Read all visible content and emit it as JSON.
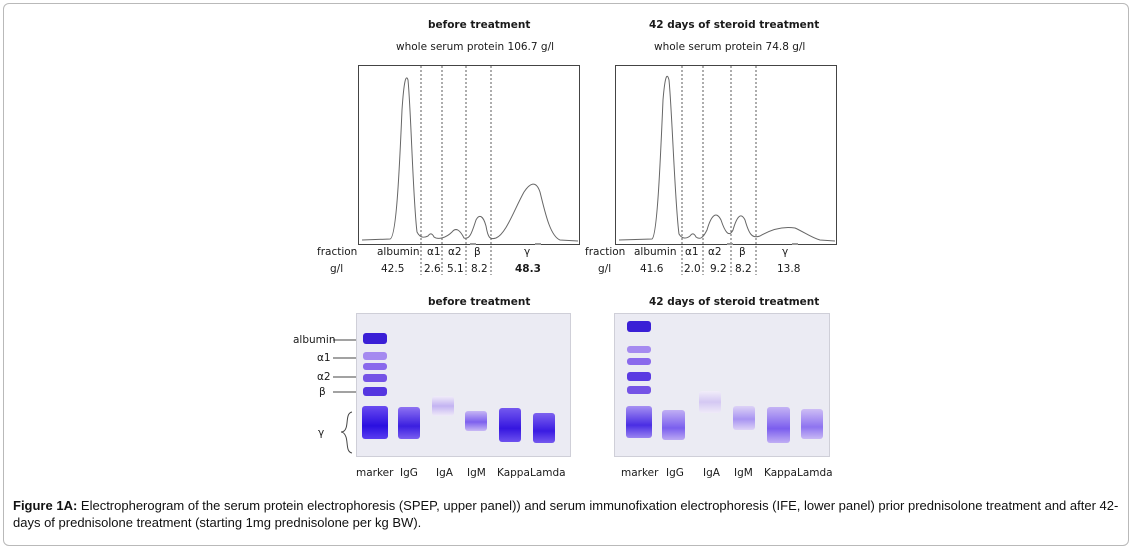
{
  "panels": [
    {
      "title": "before treatment",
      "subtitle": "whole serum protein 106.7 g/l",
      "row_labels": [
        "fraction",
        "g/l"
      ],
      "fractions": [
        "albumin",
        "α1",
        "α2",
        "β",
        "γ"
      ],
      "values": [
        "42.5",
        "2.6",
        "5.1",
        "8.2",
        "48.3"
      ],
      "gel_title": "before treatment",
      "lanes": [
        "marker",
        "IgG",
        "IgA",
        "IgM",
        "Kappa",
        "Lamda"
      ]
    },
    {
      "title": "42 days of steroid treatment",
      "subtitle": "whole serum protein 74.8 g/l",
      "row_labels": [
        "fraction",
        "g/l"
      ],
      "fractions": [
        "albumin",
        "α1",
        "α2",
        "β",
        "γ"
      ],
      "values": [
        "41.6",
        "2.0",
        "9.2",
        "8.2",
        "13.8"
      ],
      "gel_title": "42 days of steroid treatment",
      "lanes": [
        "marker",
        "IgG",
        "IgA",
        "IgM",
        "Kappa",
        "Lamda"
      ]
    }
  ],
  "marker_labels": [
    "albumin",
    "α1",
    "α2",
    "β",
    "γ"
  ],
  "caption": {
    "label": "Figure 1A:",
    "text": " Electropherogram of the serum protein electrophoresis (SPEP, upper panel)) and serum immunofixation electrophoresis (IFE, lower panel) prior prednisolone treatment and after 42-days of prednisolone treatment (starting 1mg prednisolone per kg BW)."
  }
}
